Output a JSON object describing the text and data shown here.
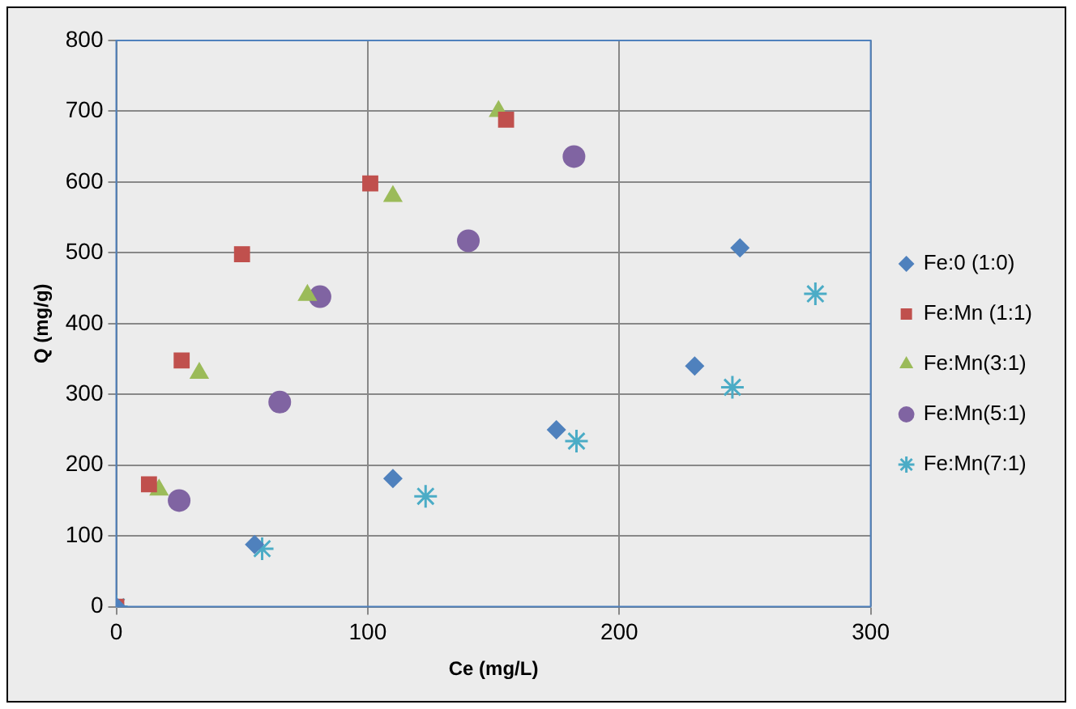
{
  "chart_data": {
    "type": "scatter",
    "xlabel": "Ce (mg/L)",
    "ylabel": "Q (mg/g)",
    "xlim": [
      0,
      300
    ],
    "xticks": [
      0,
      100,
      200,
      300
    ],
    "ylim": [
      0,
      800
    ],
    "yticks": [
      0,
      100,
      200,
      300,
      400,
      500,
      600,
      700,
      800
    ],
    "grid": true,
    "legend": "right",
    "series": [
      {
        "name": "Fe:0 (1:0)",
        "color": "#4f81bd",
        "marker": "diamond",
        "x": [
          0,
          55,
          110,
          175,
          230,
          248
        ],
        "values": [
          0,
          88,
          181,
          250,
          340,
          507
        ]
      },
      {
        "name": "Fe:Mn (1:1)",
        "color": "#c0504d",
        "marker": "square",
        "x": [
          0,
          13,
          26,
          50,
          101,
          155
        ],
        "values": [
          0,
          173,
          348,
          498,
          598,
          688
        ]
      },
      {
        "name": "Fe:Mn(3:1)",
        "color": "#9bbb59",
        "marker": "triangle",
        "x": [
          17,
          33,
          76,
          110,
          152
        ],
        "values": [
          165,
          330,
          440,
          580,
          700
        ]
      },
      {
        "name": "Fe:Mn(5:1)",
        "color": "#8064a2",
        "marker": "circle",
        "x": [
          25,
          65,
          81,
          140,
          182
        ],
        "values": [
          150,
          289,
          438,
          517,
          636
        ]
      },
      {
        "name": "Fe:Mn(7:1)",
        "color": "#4bacc6",
        "marker": "cross",
        "x": [
          0,
          58,
          123,
          183,
          245,
          278
        ],
        "values": [
          0,
          82,
          156,
          234,
          310,
          442
        ]
      }
    ]
  }
}
